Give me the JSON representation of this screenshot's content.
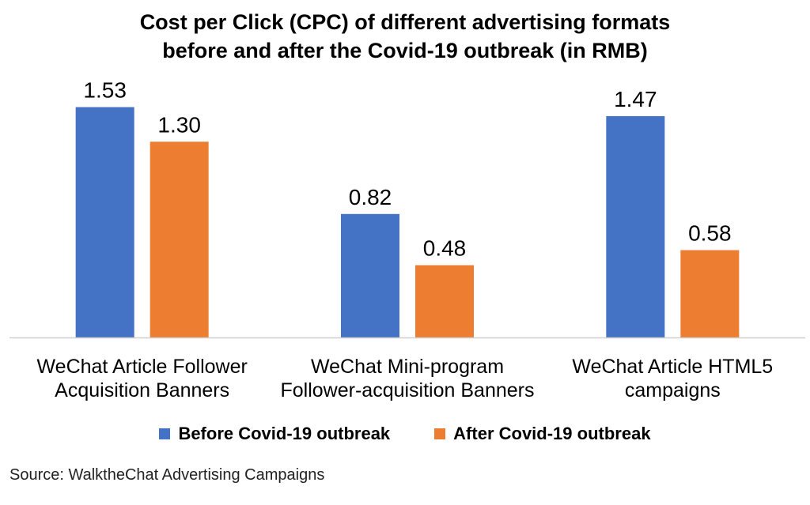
{
  "chart_data": {
    "type": "bar",
    "title_lines": [
      "Cost per Click (CPC) of different advertising formats",
      "before and after the Covid-19 outbreak (in RMB)"
    ],
    "categories": [
      [
        "WeChat Article Follower",
        "Acquisition Banners"
      ],
      [
        "WeChat Mini-program",
        "Follower-acquisition Banners"
      ],
      [
        "WeChat Article HTML5",
        "campaigns"
      ]
    ],
    "series": [
      {
        "name": "Before Covid-19 outbreak",
        "color": "#4472C4",
        "values": [
          1.53,
          0.82,
          1.47
        ],
        "labels": [
          "1.53",
          "0.82",
          "1.47"
        ]
      },
      {
        "name": "After Covid-19 outbreak",
        "color": "#ED7D31",
        "values": [
          1.3,
          0.48,
          0.58
        ],
        "labels": [
          "1.30",
          "0.48",
          "0.58"
        ]
      }
    ],
    "ylim": [
      0,
      1.7
    ],
    "grid": false,
    "legend_position": "bottom",
    "source": "Source: WalktheChat Advertising Campaigns"
  }
}
